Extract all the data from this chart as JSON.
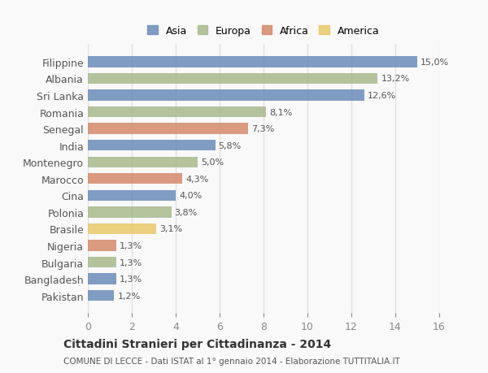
{
  "categories": [
    "Filippine",
    "Albania",
    "Sri Lanka",
    "Romania",
    "Senegal",
    "India",
    "Montenegro",
    "Marocco",
    "Cina",
    "Polonia",
    "Brasile",
    "Nigeria",
    "Bulgaria",
    "Bangladesh",
    "Pakistan"
  ],
  "values": [
    15.0,
    13.2,
    12.6,
    8.1,
    7.3,
    5.8,
    5.0,
    4.3,
    4.0,
    3.8,
    3.1,
    1.3,
    1.3,
    1.3,
    1.2
  ],
  "labels": [
    "15,0%",
    "13,2%",
    "12,6%",
    "8,1%",
    "7,3%",
    "5,8%",
    "5,0%",
    "4,3%",
    "4,0%",
    "3,8%",
    "3,1%",
    "1,3%",
    "1,3%",
    "1,3%",
    "1,2%"
  ],
  "continents": [
    "Asia",
    "Europa",
    "Asia",
    "Europa",
    "Africa",
    "Asia",
    "Europa",
    "Africa",
    "Asia",
    "Europa",
    "America",
    "Africa",
    "Europa",
    "Asia",
    "Asia"
  ],
  "continent_colors": {
    "Asia": "#6b8cba",
    "Europa": "#a8ba8c",
    "Africa": "#d4896a",
    "America": "#e8c96a"
  },
  "legend_order": [
    "Asia",
    "Europa",
    "Africa",
    "America"
  ],
  "title": "Cittadini Stranieri per Cittadinanza - 2014",
  "subtitle": "COMUNE DI LECCE - Dati ISTAT al 1° gennaio 2014 - Elaborazione TUTTITALIA.IT",
  "xlim": [
    0,
    16
  ],
  "xticks": [
    0,
    2,
    4,
    6,
    8,
    10,
    12,
    14,
    16
  ],
  "background_color": "#f9f9f9",
  "grid_color": "#e0e0e0",
  "bar_height": 0.65,
  "figsize": [
    6.0,
    4.6
  ],
  "dpi": 100
}
